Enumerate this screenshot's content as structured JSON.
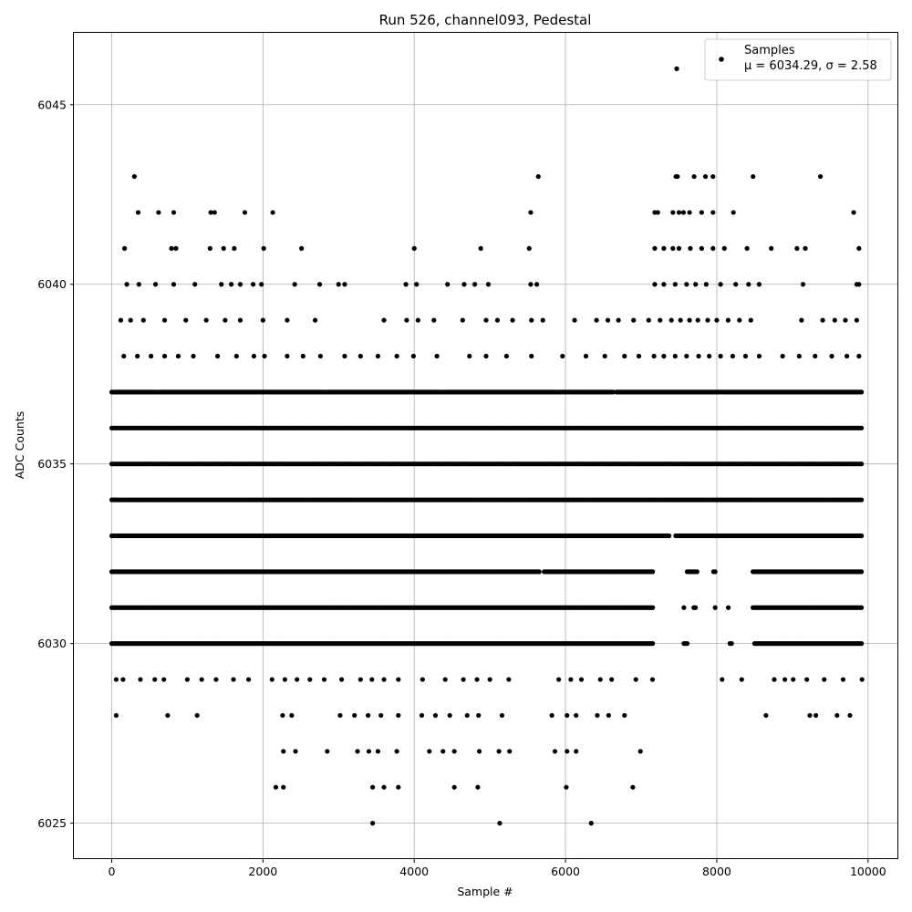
{
  "chart_data": {
    "type": "scatter",
    "title": "Run 526, channel093, Pedestal",
    "xlabel": "Sample #",
    "ylabel": "ADC Counts",
    "xlim": [
      -500,
      10400
    ],
    "ylim": [
      6024,
      6047
    ],
    "x_ticks": [
      0,
      2000,
      4000,
      6000,
      8000,
      10000
    ],
    "x_tick_labels": [
      "0",
      "2000",
      "4000",
      "6000",
      "8000",
      "10000"
    ],
    "y_ticks": [
      6025,
      6030,
      6035,
      6040,
      6045
    ],
    "y_tick_labels": [
      "6025",
      "6030",
      "6035",
      "6040",
      "6045"
    ],
    "grid": true,
    "legend": {
      "position": "top-right",
      "entries": [
        {
          "marker_color": "#000000",
          "label_line1": "Samples",
          "label_line2": "μ = 6034.29, σ = 2.58"
        }
      ]
    },
    "series": [
      {
        "color": "#000000",
        "points": [
          [
            7470,
            6046
          ],
          [
            300,
            6043
          ],
          [
            5640,
            6043
          ],
          [
            7460,
            6043
          ],
          [
            7480,
            6043
          ],
          [
            7700,
            6043
          ],
          [
            7850,
            6043
          ],
          [
            7950,
            6043
          ],
          [
            8480,
            6043
          ],
          [
            9370,
            6043
          ],
          [
            350,
            6042
          ],
          [
            620,
            6042
          ],
          [
            820,
            6042
          ],
          [
            1310,
            6042
          ],
          [
            1360,
            6042
          ],
          [
            1760,
            6042
          ],
          [
            2130,
            6042
          ],
          [
            5540,
            6042
          ],
          [
            7180,
            6042
          ],
          [
            7220,
            6042
          ],
          [
            7420,
            6042
          ],
          [
            7500,
            6042
          ],
          [
            7560,
            6042
          ],
          [
            7640,
            6042
          ],
          [
            7800,
            6042
          ],
          [
            7950,
            6042
          ],
          [
            8220,
            6042
          ],
          [
            9810,
            6042
          ],
          [
            170,
            6041
          ],
          [
            790,
            6041
          ],
          [
            850,
            6041
          ],
          [
            1300,
            6041
          ],
          [
            1480,
            6041
          ],
          [
            1620,
            6041
          ],
          [
            2010,
            6041
          ],
          [
            2510,
            6041
          ],
          [
            4000,
            6041
          ],
          [
            4880,
            6041
          ],
          [
            5520,
            6041
          ],
          [
            7180,
            6041
          ],
          [
            7300,
            6041
          ],
          [
            7420,
            6041
          ],
          [
            7500,
            6041
          ],
          [
            7650,
            6041
          ],
          [
            7800,
            6041
          ],
          [
            7950,
            6041
          ],
          [
            8100,
            6041
          ],
          [
            8400,
            6041
          ],
          [
            8720,
            6041
          ],
          [
            9060,
            6041
          ],
          [
            9170,
            6041
          ],
          [
            9880,
            6041
          ],
          [
            200,
            6040
          ],
          [
            360,
            6040
          ],
          [
            580,
            6040
          ],
          [
            820,
            6040
          ],
          [
            1100,
            6040
          ],
          [
            1450,
            6040
          ],
          [
            1580,
            6040
          ],
          [
            1700,
            6040
          ],
          [
            1870,
            6040
          ],
          [
            1980,
            6040
          ],
          [
            2420,
            6040
          ],
          [
            2750,
            6040
          ],
          [
            3000,
            6040
          ],
          [
            3080,
            6040
          ],
          [
            3890,
            6040
          ],
          [
            4030,
            6040
          ],
          [
            4440,
            6040
          ],
          [
            4660,
            6040
          ],
          [
            4800,
            6040
          ],
          [
            4980,
            6040
          ],
          [
            5540,
            6040
          ],
          [
            5620,
            6040
          ],
          [
            7180,
            6040
          ],
          [
            7300,
            6040
          ],
          [
            7450,
            6040
          ],
          [
            7600,
            6040
          ],
          [
            7720,
            6040
          ],
          [
            7860,
            6040
          ],
          [
            8050,
            6040
          ],
          [
            8250,
            6040
          ],
          [
            8420,
            6040
          ],
          [
            8560,
            6040
          ],
          [
            9140,
            6040
          ],
          [
            9850,
            6040
          ],
          [
            9880,
            6040
          ],
          [
            120,
            6039
          ],
          [
            250,
            6039
          ],
          [
            420,
            6039
          ],
          [
            700,
            6039
          ],
          [
            980,
            6039
          ],
          [
            1250,
            6039
          ],
          [
            1500,
            6039
          ],
          [
            1700,
            6039
          ],
          [
            2000,
            6039
          ],
          [
            2320,
            6039
          ],
          [
            2690,
            6039
          ],
          [
            3600,
            6039
          ],
          [
            3900,
            6039
          ],
          [
            4050,
            6039
          ],
          [
            4260,
            6039
          ],
          [
            4640,
            6039
          ],
          [
            4950,
            6039
          ],
          [
            5100,
            6039
          ],
          [
            5300,
            6039
          ],
          [
            5550,
            6039
          ],
          [
            5700,
            6039
          ],
          [
            6120,
            6039
          ],
          [
            6410,
            6039
          ],
          [
            6560,
            6039
          ],
          [
            6700,
            6039
          ],
          [
            6900,
            6039
          ],
          [
            7100,
            6039
          ],
          [
            7250,
            6039
          ],
          [
            7400,
            6039
          ],
          [
            7520,
            6039
          ],
          [
            7640,
            6039
          ],
          [
            7750,
            6039
          ],
          [
            7880,
            6039
          ],
          [
            8000,
            6039
          ],
          [
            8150,
            6039
          ],
          [
            8300,
            6039
          ],
          [
            8450,
            6039
          ],
          [
            9120,
            6039
          ],
          [
            9400,
            6039
          ],
          [
            9560,
            6039
          ],
          [
            9700,
            6039
          ],
          [
            9850,
            6039
          ],
          [
            160,
            6038
          ],
          [
            340,
            6038
          ],
          [
            520,
            6038
          ],
          [
            700,
            6038
          ],
          [
            880,
            6038
          ],
          [
            1080,
            6038
          ],
          [
            1400,
            6038
          ],
          [
            1650,
            6038
          ],
          [
            1880,
            6038
          ],
          [
            2020,
            6038
          ],
          [
            2320,
            6038
          ],
          [
            2530,
            6038
          ],
          [
            2760,
            6038
          ],
          [
            3080,
            6038
          ],
          [
            3290,
            6038
          ],
          [
            3520,
            6038
          ],
          [
            3770,
            6038
          ],
          [
            3990,
            6038
          ],
          [
            4300,
            6038
          ],
          [
            4730,
            6038
          ],
          [
            4950,
            6038
          ],
          [
            5220,
            6038
          ],
          [
            5550,
            6038
          ],
          [
            5960,
            6038
          ],
          [
            6270,
            6038
          ],
          [
            6520,
            6038
          ],
          [
            6780,
            6038
          ],
          [
            6970,
            6038
          ],
          [
            7170,
            6038
          ],
          [
            7300,
            6038
          ],
          [
            7450,
            6038
          ],
          [
            7600,
            6038
          ],
          [
            7760,
            6038
          ],
          [
            7900,
            6038
          ],
          [
            8050,
            6038
          ],
          [
            8210,
            6038
          ],
          [
            8380,
            6038
          ],
          [
            8560,
            6038
          ],
          [
            8870,
            6038
          ],
          [
            9090,
            6038
          ],
          [
            9300,
            6038
          ],
          [
            9520,
            6038
          ],
          [
            9720,
            6038
          ],
          [
            9880,
            6038
          ],
          [
            60,
            6029
          ],
          [
            150,
            6029
          ],
          [
            380,
            6029
          ],
          [
            570,
            6029
          ],
          [
            690,
            6029
          ],
          [
            1000,
            6029
          ],
          [
            1190,
            6029
          ],
          [
            1380,
            6029
          ],
          [
            1610,
            6029
          ],
          [
            1810,
            6029
          ],
          [
            2120,
            6029
          ],
          [
            2290,
            6029
          ],
          [
            2450,
            6029
          ],
          [
            2620,
            6029
          ],
          [
            2810,
            6029
          ],
          [
            3040,
            6029
          ],
          [
            3290,
            6029
          ],
          [
            3440,
            6029
          ],
          [
            3600,
            6029
          ],
          [
            3790,
            6029
          ],
          [
            4110,
            6029
          ],
          [
            4410,
            6029
          ],
          [
            4650,
            6029
          ],
          [
            4830,
            6029
          ],
          [
            5000,
            6029
          ],
          [
            5250,
            6029
          ],
          [
            5910,
            6029
          ],
          [
            6070,
            6029
          ],
          [
            6210,
            6029
          ],
          [
            6460,
            6029
          ],
          [
            6610,
            6029
          ],
          [
            6930,
            6029
          ],
          [
            7150,
            6029
          ],
          [
            8070,
            6029
          ],
          [
            8330,
            6029
          ],
          [
            8760,
            6029
          ],
          [
            8900,
            6029
          ],
          [
            9010,
            6029
          ],
          [
            9190,
            6029
          ],
          [
            9420,
            6029
          ],
          [
            9670,
            6029
          ],
          [
            9920,
            6029
          ],
          [
            60,
            6028
          ],
          [
            740,
            6028
          ],
          [
            1130,
            6028
          ],
          [
            2260,
            6028
          ],
          [
            2380,
            6028
          ],
          [
            3020,
            6028
          ],
          [
            3210,
            6028
          ],
          [
            3390,
            6028
          ],
          [
            3560,
            6028
          ],
          [
            3790,
            6028
          ],
          [
            4100,
            6028
          ],
          [
            4280,
            6028
          ],
          [
            4470,
            6028
          ],
          [
            4700,
            6028
          ],
          [
            4850,
            6028
          ],
          [
            5160,
            6028
          ],
          [
            5820,
            6028
          ],
          [
            6020,
            6028
          ],
          [
            6140,
            6028
          ],
          [
            6420,
            6028
          ],
          [
            6570,
            6028
          ],
          [
            6780,
            6028
          ],
          [
            8650,
            6028
          ],
          [
            9230,
            6028
          ],
          [
            9310,
            6028
          ],
          [
            9590,
            6028
          ],
          [
            9760,
            6028
          ],
          [
            2270,
            6027
          ],
          [
            2430,
            6027
          ],
          [
            2850,
            6027
          ],
          [
            3250,
            6027
          ],
          [
            3400,
            6027
          ],
          [
            3520,
            6027
          ],
          [
            3770,
            6027
          ],
          [
            4200,
            6027
          ],
          [
            4380,
            6027
          ],
          [
            4530,
            6027
          ],
          [
            4860,
            6027
          ],
          [
            5120,
            6027
          ],
          [
            5260,
            6027
          ],
          [
            5860,
            6027
          ],
          [
            6020,
            6027
          ],
          [
            6140,
            6027
          ],
          [
            6990,
            6027
          ],
          [
            2170,
            6026
          ],
          [
            2270,
            6026
          ],
          [
            3450,
            6026
          ],
          [
            3600,
            6026
          ],
          [
            3790,
            6026
          ],
          [
            4530,
            6026
          ],
          [
            4840,
            6026
          ],
          [
            6010,
            6026
          ],
          [
            6890,
            6026
          ],
          [
            3450,
            6025
          ],
          [
            5130,
            6025
          ],
          [
            6340,
            6025
          ]
        ],
        "dense_levels": [
          {
            "y": 6037,
            "x_start": 0,
            "x_end": 9930,
            "gaps": [
              [
                6640,
                6670
              ]
            ]
          },
          {
            "y": 6036,
            "x_start": 0,
            "x_end": 9930,
            "gaps": []
          },
          {
            "y": 6035,
            "x_start": 0,
            "x_end": 9930,
            "gaps": []
          },
          {
            "y": 6034,
            "x_start": 0,
            "x_end": 9930,
            "gaps": []
          },
          {
            "y": 6033,
            "x_start": 0,
            "x_end": 9930,
            "gaps": [
              [
                7380,
                7450
              ]
            ]
          },
          {
            "y": 6032,
            "x_start": 0,
            "x_end": 9930,
            "gaps": [
              [
                5660,
                5700
              ],
              [
                7170,
                7600
              ],
              [
                7740,
                7950
              ],
              [
                8000,
                8460
              ]
            ]
          },
          {
            "y": 6031,
            "x_start": 0,
            "x_end": 9930,
            "gaps": [
              [
                7170,
                7560
              ],
              [
                7580,
                7690
              ],
              [
                7720,
                7960
              ],
              [
                8000,
                8140
              ],
              [
                8160,
                8460
              ]
            ]
          },
          {
            "y": 6030,
            "x_start": 0,
            "x_end": 9930,
            "gaps": [
              [
                7170,
                7550
              ],
              [
                7610,
                8170
              ],
              [
                8200,
                8480
              ]
            ]
          }
        ]
      }
    ]
  }
}
